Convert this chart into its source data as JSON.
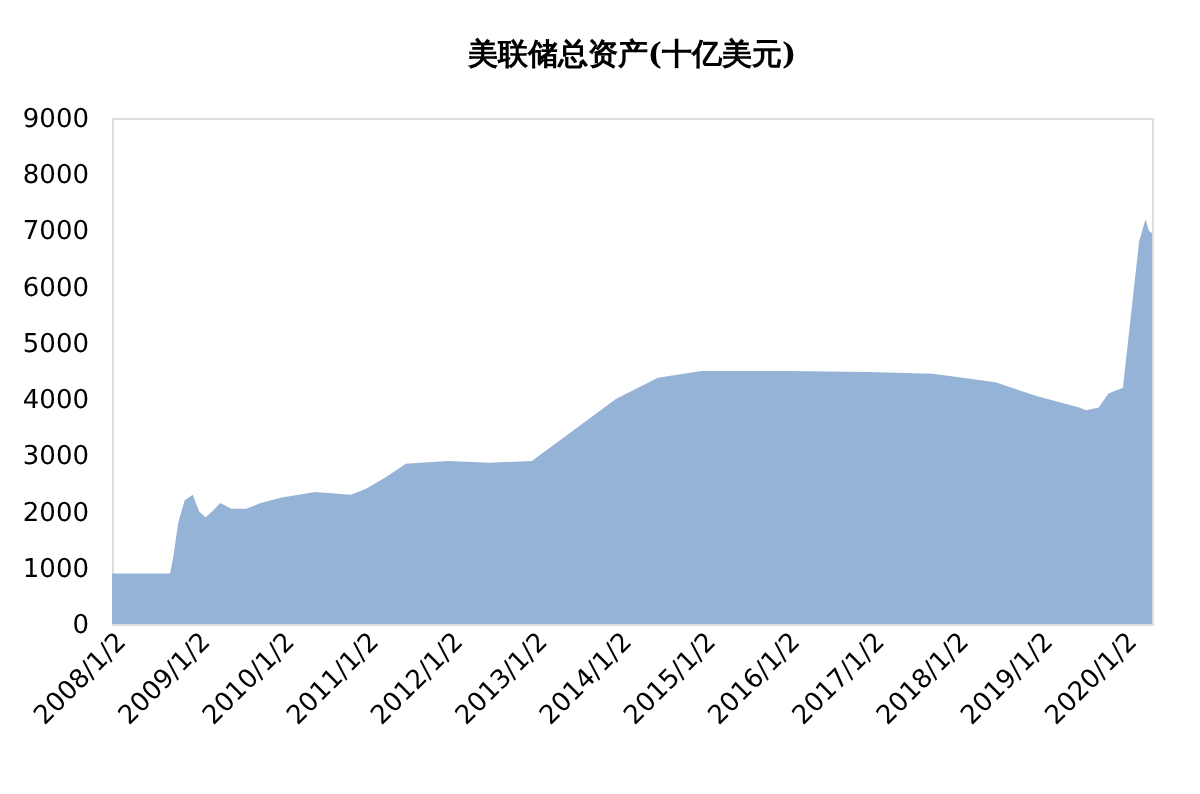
{
  "chart_data": {
    "type": "area",
    "title": "美联储总资产(十亿美元)",
    "x": [
      "2008-01-02",
      "2008-09-10",
      "2008-09-24",
      "2008-10-15",
      "2008-11-12",
      "2008-12-17",
      "2009-01-14",
      "2009-02-11",
      "2009-03-11",
      "2009-04-15",
      "2009-06-03",
      "2009-08-05",
      "2009-10-07",
      "2010-01-06",
      "2010-06-02",
      "2010-11-03",
      "2011-01-05",
      "2011-03-30",
      "2011-06-29",
      "2011-12-28",
      "2012-06-27",
      "2012-12-26",
      "2013-06-26",
      "2013-12-25",
      "2014-06-25",
      "2014-12-31",
      "2015-12-30",
      "2016-12-28",
      "2017-09-27",
      "2017-12-27",
      "2018-06-27",
      "2018-12-26",
      "2019-06-26",
      "2019-07-24",
      "2019-09-18",
      "2019-10-30",
      "2020-01-01",
      "2020-02-05",
      "2020-03-11",
      "2020-04-08",
      "2020-04-22",
      "2020-05-06"
    ],
    "series": [
      {
        "color": "#95b3d7",
        "values": [
          900,
          900,
          1200,
          1800,
          2200,
          2300,
          2000,
          1900,
          2000,
          2150,
          2050,
          2050,
          2150,
          2250,
          2350,
          2300,
          2400,
          2600,
          2850,
          2900,
          2870,
          2900,
          3450,
          4000,
          4380,
          4500,
          4500,
          4480,
          4450,
          4400,
          4300,
          4050,
          3850,
          3800,
          3850,
          4100,
          4200,
          5500,
          6800,
          7200,
          7000,
          6950
        ]
      }
    ],
    "xlim": [
      "2008-01-02",
      "2020-05-06"
    ],
    "xticks": [
      {
        "value": "2008-01-02",
        "label": "2008/1/2"
      },
      {
        "value": "2009-01-02",
        "label": "2009/1/2"
      },
      {
        "value": "2010-01-02",
        "label": "2010/1/2"
      },
      {
        "value": "2011-01-02",
        "label": "2011/1/2"
      },
      {
        "value": "2012-01-02",
        "label": "2012/1/2"
      },
      {
        "value": "2013-01-02",
        "label": "2013/1/2"
      },
      {
        "value": "2014-01-02",
        "label": "2014/1/2"
      },
      {
        "value": "2015-01-02",
        "label": "2015/1/2"
      },
      {
        "value": "2016-01-02",
        "label": "2016/1/2"
      },
      {
        "value": "2017-01-02",
        "label": "2017/1/2"
      },
      {
        "value": "2018-01-02",
        "label": "2018/1/2"
      },
      {
        "value": "2019-01-02",
        "label": "2019/1/2"
      },
      {
        "value": "2020-01-02",
        "label": "2020/1/2"
      }
    ],
    "ylim": [
      0,
      9000
    ],
    "yticks": [
      0,
      1000,
      2000,
      3000,
      4000,
      5000,
      6000,
      7000,
      8000,
      9000
    ],
    "grid": false
  }
}
